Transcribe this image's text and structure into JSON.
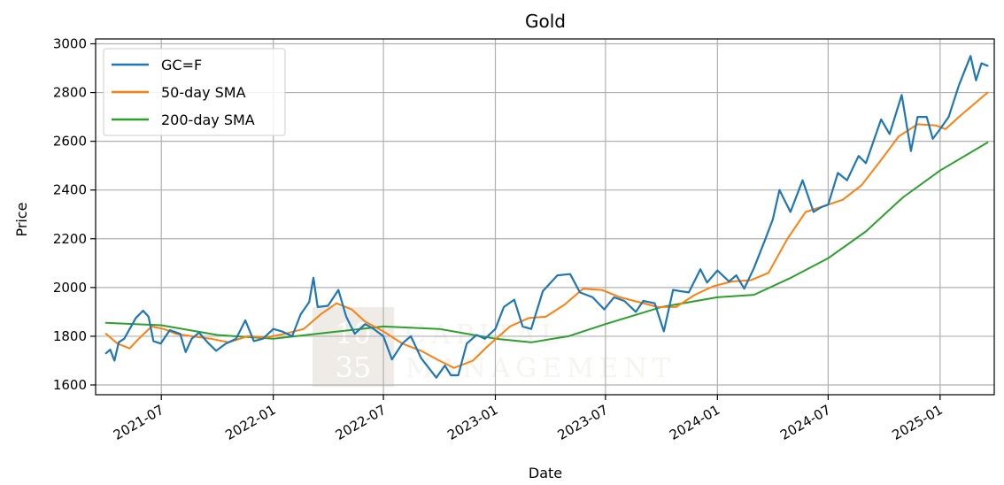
{
  "chart_data": {
    "type": "line",
    "title": "Gold",
    "xlabel": "Date",
    "ylabel": "Price",
    "x_range": [
      "2021-03-15",
      "2025-03-31"
    ],
    "ylim": [
      1560,
      3020
    ],
    "grid": true,
    "legend_position": "top-left",
    "x_ticks": [
      {
        "date": "2021-07-01",
        "label": "2021-07"
      },
      {
        "date": "2022-01-01",
        "label": "2022-01"
      },
      {
        "date": "2022-07-01",
        "label": "2022-07"
      },
      {
        "date": "2023-01-01",
        "label": "2023-01"
      },
      {
        "date": "2023-07-01",
        "label": "2023-07"
      },
      {
        "date": "2024-01-01",
        "label": "2024-01"
      },
      {
        "date": "2024-07-01",
        "label": "2024-07"
      },
      {
        "date": "2025-01-01",
        "label": "2025-01"
      }
    ],
    "y_ticks": [
      1600,
      1800,
      2000,
      2200,
      2400,
      2600,
      2800,
      3000
    ],
    "series": [
      {
        "name": "GC=F",
        "color": "#1f77b4",
        "points": [
          [
            "2021-04-01",
            1730
          ],
          [
            "2021-04-08",
            1745
          ],
          [
            "2021-04-15",
            1700
          ],
          [
            "2021-04-22",
            1775
          ],
          [
            "2021-05-01",
            1790
          ],
          [
            "2021-05-10",
            1830
          ],
          [
            "2021-05-20",
            1875
          ],
          [
            "2021-06-01",
            1905
          ],
          [
            "2021-06-10",
            1880
          ],
          [
            "2021-06-18",
            1780
          ],
          [
            "2021-06-30",
            1770
          ],
          [
            "2021-07-15",
            1825
          ],
          [
            "2021-08-01",
            1810
          ],
          [
            "2021-08-10",
            1735
          ],
          [
            "2021-08-20",
            1790
          ],
          [
            "2021-09-01",
            1815
          ],
          [
            "2021-09-15",
            1775
          ],
          [
            "2021-09-29",
            1740
          ],
          [
            "2021-10-15",
            1770
          ],
          [
            "2021-11-01",
            1790
          ],
          [
            "2021-11-16",
            1865
          ],
          [
            "2021-11-30",
            1780
          ],
          [
            "2021-12-15",
            1790
          ],
          [
            "2022-01-01",
            1830
          ],
          [
            "2022-01-15",
            1820
          ],
          [
            "2022-02-01",
            1800
          ],
          [
            "2022-02-15",
            1890
          ],
          [
            "2022-03-01",
            1940
          ],
          [
            "2022-03-08",
            2040
          ],
          [
            "2022-03-15",
            1920
          ],
          [
            "2022-04-01",
            1925
          ],
          [
            "2022-04-18",
            1990
          ],
          [
            "2022-05-01",
            1880
          ],
          [
            "2022-05-15",
            1810
          ],
          [
            "2022-06-01",
            1850
          ],
          [
            "2022-06-15",
            1830
          ],
          [
            "2022-07-01",
            1800
          ],
          [
            "2022-07-15",
            1705
          ],
          [
            "2022-08-01",
            1770
          ],
          [
            "2022-08-15",
            1800
          ],
          [
            "2022-09-01",
            1710
          ],
          [
            "2022-09-26",
            1630
          ],
          [
            "2022-10-10",
            1680
          ],
          [
            "2022-10-20",
            1640
          ],
          [
            "2022-11-01",
            1640
          ],
          [
            "2022-11-15",
            1770
          ],
          [
            "2022-12-01",
            1805
          ],
          [
            "2022-12-15",
            1790
          ],
          [
            "2023-01-01",
            1830
          ],
          [
            "2023-01-15",
            1920
          ],
          [
            "2023-02-01",
            1950
          ],
          [
            "2023-02-15",
            1840
          ],
          [
            "2023-03-01",
            1830
          ],
          [
            "2023-03-20",
            1985
          ],
          [
            "2023-04-13",
            2050
          ],
          [
            "2023-05-04",
            2055
          ],
          [
            "2023-05-20",
            1980
          ],
          [
            "2023-06-10",
            1960
          ],
          [
            "2023-06-29",
            1910
          ],
          [
            "2023-07-15",
            1960
          ],
          [
            "2023-08-01",
            1945
          ],
          [
            "2023-08-20",
            1900
          ],
          [
            "2023-09-01",
            1945
          ],
          [
            "2023-09-20",
            1935
          ],
          [
            "2023-10-05",
            1820
          ],
          [
            "2023-10-20",
            1990
          ],
          [
            "2023-11-01",
            1985
          ],
          [
            "2023-11-15",
            1980
          ],
          [
            "2023-12-04",
            2075
          ],
          [
            "2023-12-15",
            2020
          ],
          [
            "2024-01-01",
            2070
          ],
          [
            "2024-01-20",
            2025
          ],
          [
            "2024-02-01",
            2050
          ],
          [
            "2024-02-14",
            1995
          ],
          [
            "2024-03-01",
            2080
          ],
          [
            "2024-03-20",
            2200
          ],
          [
            "2024-04-01",
            2280
          ],
          [
            "2024-04-12",
            2400
          ],
          [
            "2024-04-30",
            2310
          ],
          [
            "2024-05-20",
            2440
          ],
          [
            "2024-06-07",
            2310
          ],
          [
            "2024-06-20",
            2330
          ],
          [
            "2024-07-01",
            2340
          ],
          [
            "2024-07-17",
            2470
          ],
          [
            "2024-08-01",
            2440
          ],
          [
            "2024-08-20",
            2540
          ],
          [
            "2024-09-01",
            2510
          ],
          [
            "2024-09-26",
            2690
          ],
          [
            "2024-10-10",
            2630
          ],
          [
            "2024-10-30",
            2790
          ],
          [
            "2024-11-14",
            2560
          ],
          [
            "2024-11-25",
            2700
          ],
          [
            "2024-12-10",
            2700
          ],
          [
            "2024-12-20",
            2610
          ],
          [
            "2025-01-01",
            2650
          ],
          [
            "2025-01-15",
            2700
          ],
          [
            "2025-02-01",
            2830
          ],
          [
            "2025-02-20",
            2950
          ],
          [
            "2025-03-01",
            2850
          ],
          [
            "2025-03-10",
            2920
          ],
          [
            "2025-03-20",
            2910
          ]
        ]
      },
      {
        "name": "50-day SMA",
        "color": "#ff7f0e",
        "points": [
          [
            "2021-04-01",
            1810
          ],
          [
            "2021-04-20",
            1770
          ],
          [
            "2021-05-10",
            1750
          ],
          [
            "2021-05-25",
            1790
          ],
          [
            "2021-06-15",
            1840
          ],
          [
            "2021-07-05",
            1830
          ],
          [
            "2021-07-25",
            1810
          ],
          [
            "2021-08-20",
            1800
          ],
          [
            "2021-09-20",
            1790
          ],
          [
            "2021-10-20",
            1775
          ],
          [
            "2021-11-20",
            1800
          ],
          [
            "2021-12-20",
            1795
          ],
          [
            "2022-01-20",
            1810
          ],
          [
            "2022-02-20",
            1830
          ],
          [
            "2022-03-20",
            1890
          ],
          [
            "2022-04-15",
            1935
          ],
          [
            "2022-05-10",
            1910
          ],
          [
            "2022-06-01",
            1860
          ],
          [
            "2022-07-01",
            1820
          ],
          [
            "2022-08-01",
            1770
          ],
          [
            "2022-09-01",
            1740
          ],
          [
            "2022-10-01",
            1700
          ],
          [
            "2022-10-25",
            1670
          ],
          [
            "2022-11-25",
            1700
          ],
          [
            "2022-12-20",
            1760
          ],
          [
            "2023-01-25",
            1840
          ],
          [
            "2023-02-25",
            1875
          ],
          [
            "2023-03-25",
            1880
          ],
          [
            "2023-04-25",
            1930
          ],
          [
            "2023-05-25",
            1995
          ],
          [
            "2023-06-25",
            1990
          ],
          [
            "2023-07-25",
            1960
          ],
          [
            "2023-08-25",
            1940
          ],
          [
            "2023-09-25",
            1920
          ],
          [
            "2023-10-25",
            1920
          ],
          [
            "2023-11-25",
            1970
          ],
          [
            "2023-12-25",
            2005
          ],
          [
            "2024-01-25",
            2025
          ],
          [
            "2024-02-25",
            2030
          ],
          [
            "2024-03-25",
            2060
          ],
          [
            "2024-04-25",
            2200
          ],
          [
            "2024-05-25",
            2310
          ],
          [
            "2024-06-25",
            2335
          ],
          [
            "2024-07-25",
            2360
          ],
          [
            "2024-08-25",
            2420
          ],
          [
            "2024-09-25",
            2520
          ],
          [
            "2024-10-25",
            2620
          ],
          [
            "2024-11-25",
            2670
          ],
          [
            "2024-12-25",
            2665
          ],
          [
            "2025-01-10",
            2650
          ],
          [
            "2025-02-01",
            2700
          ],
          [
            "2025-03-01",
            2760
          ],
          [
            "2025-03-20",
            2800
          ]
        ]
      },
      {
        "name": "200-day SMA",
        "color": "#2ca02c",
        "points": [
          [
            "2021-04-01",
            1855
          ],
          [
            "2021-07-01",
            1845
          ],
          [
            "2021-10-01",
            1805
          ],
          [
            "2022-01-01",
            1790
          ],
          [
            "2022-04-01",
            1815
          ],
          [
            "2022-07-01",
            1840
          ],
          [
            "2022-10-01",
            1830
          ],
          [
            "2023-01-01",
            1790
          ],
          [
            "2023-03-01",
            1775
          ],
          [
            "2023-05-01",
            1800
          ],
          [
            "2023-07-01",
            1850
          ],
          [
            "2023-10-01",
            1920
          ],
          [
            "2024-01-01",
            1960
          ],
          [
            "2024-03-01",
            1970
          ],
          [
            "2024-05-01",
            2040
          ],
          [
            "2024-07-01",
            2120
          ],
          [
            "2024-09-01",
            2230
          ],
          [
            "2024-11-01",
            2370
          ],
          [
            "2025-01-01",
            2480
          ],
          [
            "2025-03-20",
            2595
          ]
        ]
      }
    ],
    "watermark": {
      "logo_top": "10",
      "logo_bottom": "35",
      "text_top": "CAPITAL",
      "text_bottom": "MANAGEMENT"
    }
  }
}
